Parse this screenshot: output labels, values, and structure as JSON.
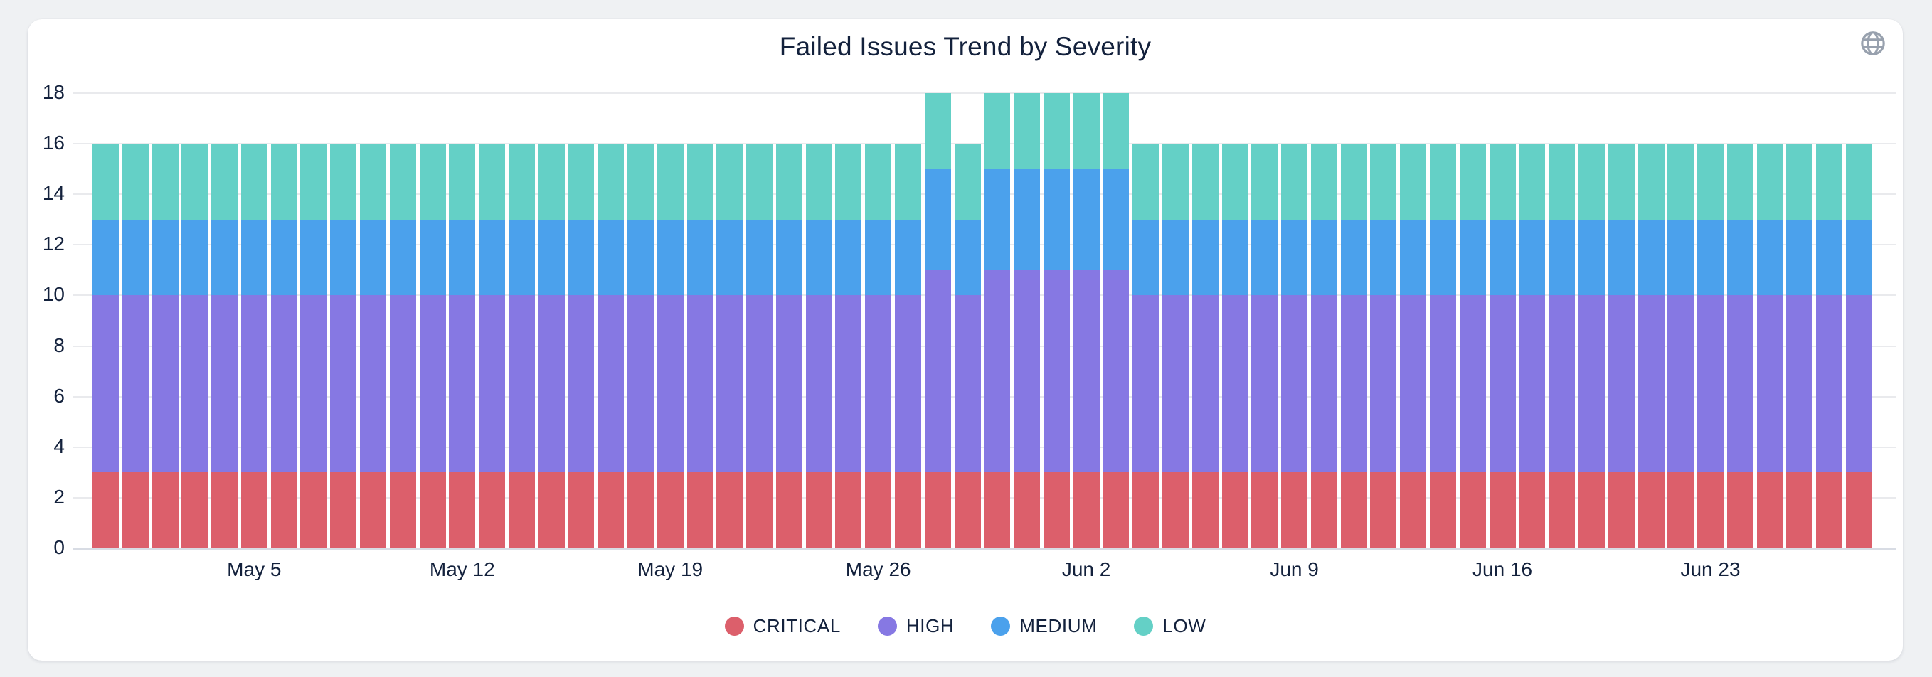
{
  "card": {
    "title": "Failed Issues Trend by Severity",
    "top_right_icon": "globe-icon",
    "icon_color": "#98A1AE"
  },
  "theme": {
    "page_background": "#EFF1F3",
    "card_background": "#FFFFFF",
    "text_color": "#13213C",
    "gridline_color": "#E9EAED",
    "axisline_color": "#D8DCE4"
  },
  "chart_data": {
    "type": "bar",
    "stacked": true,
    "title": "Failed Issues Trend by Severity",
    "xlabel": "",
    "ylabel": "",
    "ylim": [
      0,
      18
    ],
    "yticks": [
      0,
      2,
      4,
      6,
      8,
      10,
      12,
      14,
      16,
      18
    ],
    "grid": true,
    "legend_position": "bottom",
    "categories": [
      "Apr 30",
      "May 1",
      "May 2",
      "May 3",
      "May 4",
      "May 5",
      "May 6",
      "May 7",
      "May 8",
      "May 9",
      "May 10",
      "May 11",
      "May 12",
      "May 13",
      "May 14",
      "May 15",
      "May 16",
      "May 17",
      "May 18",
      "May 19",
      "May 20",
      "May 21",
      "May 22",
      "May 23",
      "May 24",
      "May 25",
      "May 26",
      "May 27",
      "May 28",
      "May 29",
      "May 30",
      "May 31",
      "Jun 1",
      "Jun 2",
      "Jun 3",
      "Jun 4",
      "Jun 5",
      "Jun 6",
      "Jun 7",
      "Jun 8",
      "Jun 9",
      "Jun 10",
      "Jun 11",
      "Jun 12",
      "Jun 13",
      "Jun 14",
      "Jun 15",
      "Jun 16",
      "Jun 17",
      "Jun 18",
      "Jun 19",
      "Jun 20",
      "Jun 21",
      "Jun 22",
      "Jun 23",
      "Jun 24",
      "Jun 25",
      "Jun 26",
      "Jun 27",
      "Jun 28"
    ],
    "x_ticks": [
      {
        "index": 5,
        "label": "May 5"
      },
      {
        "index": 12,
        "label": "May 12"
      },
      {
        "index": 19,
        "label": "May 19"
      },
      {
        "index": 26,
        "label": "May 26"
      },
      {
        "index": 33,
        "label": "Jun 2"
      },
      {
        "index": 40,
        "label": "Jun 9"
      },
      {
        "index": 47,
        "label": "Jun 16"
      },
      {
        "index": 54,
        "label": "Jun 23"
      }
    ],
    "series": [
      {
        "name": "CRITICAL",
        "color": "#DC5F6B",
        "values": [
          3,
          3,
          3,
          3,
          3,
          3,
          3,
          3,
          3,
          3,
          3,
          3,
          3,
          3,
          3,
          3,
          3,
          3,
          3,
          3,
          3,
          3,
          3,
          3,
          3,
          3,
          3,
          3,
          3,
          3,
          3,
          3,
          3,
          3,
          3,
          3,
          3,
          3,
          3,
          3,
          3,
          3,
          3,
          3,
          3,
          3,
          3,
          3,
          3,
          3,
          3,
          3,
          3,
          3,
          3,
          3,
          3,
          3,
          3,
          3
        ]
      },
      {
        "name": "HIGH",
        "color": "#8678E3",
        "values": [
          7,
          7,
          7,
          7,
          7,
          7,
          7,
          7,
          7,
          7,
          7,
          7,
          7,
          7,
          7,
          7,
          7,
          7,
          7,
          7,
          7,
          7,
          7,
          7,
          7,
          7,
          7,
          7,
          8,
          7,
          8,
          8,
          8,
          8,
          8,
          7,
          7,
          7,
          7,
          7,
          7,
          7,
          7,
          7,
          7,
          7,
          7,
          7,
          7,
          7,
          7,
          7,
          7,
          7,
          7,
          7,
          7,
          7,
          7,
          7
        ]
      },
      {
        "name": "MEDIUM",
        "color": "#4BA1EC",
        "values": [
          3,
          3,
          3,
          3,
          3,
          3,
          3,
          3,
          3,
          3,
          3,
          3,
          3,
          3,
          3,
          3,
          3,
          3,
          3,
          3,
          3,
          3,
          3,
          3,
          3,
          3,
          3,
          3,
          4,
          3,
          4,
          4,
          4,
          4,
          4,
          3,
          3,
          3,
          3,
          3,
          3,
          3,
          3,
          3,
          3,
          3,
          3,
          3,
          3,
          3,
          3,
          3,
          3,
          3,
          3,
          3,
          3,
          3,
          3,
          3
        ]
      },
      {
        "name": "LOW",
        "color": "#64D0C6",
        "values": [
          3,
          3,
          3,
          3,
          3,
          3,
          3,
          3,
          3,
          3,
          3,
          3,
          3,
          3,
          3,
          3,
          3,
          3,
          3,
          3,
          3,
          3,
          3,
          3,
          3,
          3,
          3,
          3,
          3,
          3,
          3,
          3,
          3,
          3,
          3,
          3,
          3,
          3,
          3,
          3,
          3,
          3,
          3,
          3,
          3,
          3,
          3,
          3,
          3,
          3,
          3,
          3,
          3,
          3,
          3,
          3,
          3,
          3,
          3,
          3
        ]
      }
    ]
  }
}
